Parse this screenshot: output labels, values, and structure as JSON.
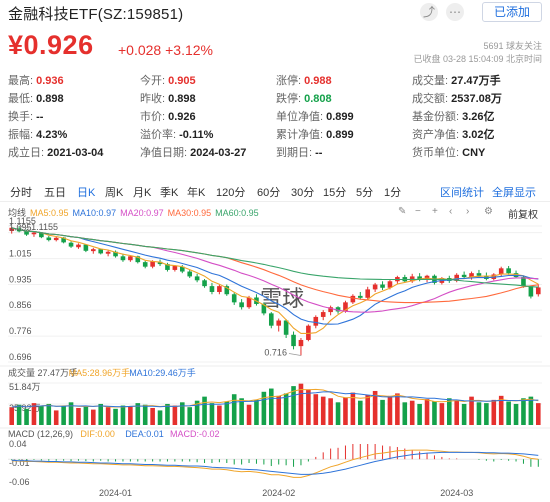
{
  "header": {
    "title": "金融科技ETF(SZ:159851)",
    "follow_label": "已添加",
    "price": "¥0.926",
    "change": "+0.028",
    "change_pct": "+3.12%",
    "followers": "5691  球友关注",
    "status": "已收盘  03-28  15:04:09  北京时间"
  },
  "stats": [
    {
      "label": "最高:",
      "value": "0.936",
      "tone": "red"
    },
    {
      "label": "今开:",
      "value": "0.905",
      "tone": "red"
    },
    {
      "label": "涨停:",
      "value": "0.988",
      "tone": "red"
    },
    {
      "label": "成交量:",
      "value": "27.47万手",
      "tone": ""
    },
    {
      "label": "最低:",
      "value": "0.898",
      "tone": ""
    },
    {
      "label": "昨收:",
      "value": "0.898",
      "tone": ""
    },
    {
      "label": "跌停:",
      "value": "0.808",
      "tone": "green"
    },
    {
      "label": "成交额:",
      "value": "2537.08万",
      "tone": ""
    },
    {
      "label": "换手:",
      "value": "--",
      "tone": ""
    },
    {
      "label": "市价:",
      "value": "0.926",
      "tone": ""
    },
    {
      "label": "单位净值:",
      "value": "0.899",
      "tone": ""
    },
    {
      "label": "基金份额:",
      "value": "3.26亿",
      "tone": ""
    },
    {
      "label": "振幅:",
      "value": "4.23%",
      "tone": ""
    },
    {
      "label": "溢价率:",
      "value": "-0.11%",
      "tone": ""
    },
    {
      "label": "累计净值:",
      "value": "0.899",
      "tone": ""
    },
    {
      "label": "资产净值:",
      "value": "3.02亿",
      "tone": ""
    },
    {
      "label": "成立日:",
      "value": "2021-03-04",
      "tone": ""
    },
    {
      "label": "净值日期:",
      "value": "2024-03-27",
      "tone": ""
    },
    {
      "label": "到期日:",
      "value": "--",
      "tone": ""
    },
    {
      "label": "货币单位:",
      "value": "CNY",
      "tone": ""
    }
  ],
  "tabs": [
    "分时",
    "五日",
    "日K",
    "周K",
    "月K",
    "季K",
    "年K",
    "120分",
    "60分",
    "30分",
    "15分",
    "5分",
    "1分"
  ],
  "active_tab": 2,
  "tab_right": [
    "区间统计",
    "全屏显示"
  ],
  "ma_legend": [
    {
      "text": "均线",
      "color": "#555555"
    },
    {
      "text": "MA5:0.95",
      "color": "#f0a52a"
    },
    {
      "text": "MA10:0.97",
      "color": "#2f74d9"
    },
    {
      "text": "MA20:0.97",
      "color": "#d44fc6"
    },
    {
      "text": "MA30:0.95",
      "color": "#ff6a3d"
    },
    {
      "text": "MA60:0.95",
      "color": "#3aa56b"
    }
  ],
  "fuquan": "前复权",
  "volume_legend": [
    {
      "text": "成交量 27.47万手",
      "color": "#555555"
    },
    {
      "text": "MA5:28.96万手",
      "color": "#f0a52a"
    },
    {
      "text": "MA10:29.46万手",
      "color": "#2f74d9"
    }
  ],
  "macd_legend": [
    {
      "text": "MACD (12,26,9)",
      "color": "#555555"
    },
    {
      "text": "DIF:0.00",
      "color": "#f0a52a"
    },
    {
      "text": "DEA:0.01",
      "color": "#2f74d9"
    },
    {
      "text": "MACD:-0.02",
      "color": "#d44fc6"
    }
  ],
  "watermark": "雪球",
  "colors": {
    "up": "#e5302d",
    "down": "#14a14a",
    "accent": "#1f6fde"
  },
  "chart_data": {
    "type": "candlestick",
    "title": "金融科技ETF(SZ:159851) 日K",
    "xlabel": "",
    "ylabel": "",
    "ylim": [
      0.696,
      1.1155
    ],
    "y_ticks": [
      "1.1155",
      "1.095",
      "1.015",
      "0.935",
      "0.856",
      "0.776",
      "0.696"
    ],
    "x_ticks": [
      "2024-01",
      "2024-02",
      "2024-03"
    ],
    "annotations": {
      "high": "1.1155",
      "low": "0.716"
    },
    "candles": [
      [
        1.1,
        1.112,
        1.092,
        1.11
      ],
      [
        1.108,
        1.115,
        1.096,
        1.099
      ],
      [
        1.099,
        1.104,
        1.085,
        1.089
      ],
      [
        1.09,
        1.099,
        1.082,
        1.095
      ],
      [
        1.094,
        1.097,
        1.078,
        1.081
      ],
      [
        1.08,
        1.085,
        1.068,
        1.072
      ],
      [
        1.072,
        1.082,
        1.068,
        1.079
      ],
      [
        1.08,
        1.082,
        1.062,
        1.065
      ],
      [
        1.064,
        1.068,
        1.048,
        1.052
      ],
      [
        1.05,
        1.062,
        1.045,
        1.058
      ],
      [
        1.058,
        1.06,
        1.035,
        1.039
      ],
      [
        1.038,
        1.048,
        1.03,
        1.044
      ],
      [
        1.044,
        1.046,
        1.028,
        1.031
      ],
      [
        1.03,
        1.04,
        1.022,
        1.036
      ],
      [
        1.036,
        1.04,
        1.018,
        1.022
      ],
      [
        1.022,
        1.03,
        1.005,
        1.01
      ],
      [
        1.01,
        1.025,
        1.005,
        1.022
      ],
      [
        1.022,
        1.024,
        1.0,
        1.004
      ],
      [
        1.004,
        1.008,
        0.985,
        0.99
      ],
      [
        0.99,
        1.01,
        0.985,
        1.006
      ],
      [
        1.005,
        1.012,
        0.992,
        0.998
      ],
      [
        0.998,
        1.002,
        0.975,
        0.98
      ],
      [
        0.98,
        0.995,
        0.975,
        0.992
      ],
      [
        0.99,
        0.995,
        0.97,
        0.975
      ],
      [
        0.975,
        0.98,
        0.955,
        0.96
      ],
      [
        0.96,
        0.968,
        0.942,
        0.948
      ],
      [
        0.948,
        0.952,
        0.925,
        0.93
      ],
      [
        0.93,
        0.94,
        0.905,
        0.912
      ],
      [
        0.912,
        0.935,
        0.905,
        0.93
      ],
      [
        0.93,
        0.935,
        0.9,
        0.905
      ],
      [
        0.905,
        0.91,
        0.872,
        0.88
      ],
      [
        0.88,
        0.89,
        0.858,
        0.865
      ],
      [
        0.865,
        0.9,
        0.86,
        0.895
      ],
      [
        0.895,
        0.905,
        0.87,
        0.875
      ],
      [
        0.875,
        0.88,
        0.84,
        0.846
      ],
      [
        0.846,
        0.85,
        0.8,
        0.808
      ],
      [
        0.808,
        0.83,
        0.79,
        0.824
      ],
      [
        0.824,
        0.828,
        0.77,
        0.78
      ],
      [
        0.78,
        0.79,
        0.735,
        0.745
      ],
      [
        0.745,
        0.77,
        0.716,
        0.764
      ],
      [
        0.764,
        0.812,
        0.76,
        0.808
      ],
      [
        0.808,
        0.84,
        0.8,
        0.835
      ],
      [
        0.835,
        0.856,
        0.825,
        0.85
      ],
      [
        0.85,
        0.87,
        0.84,
        0.865
      ],
      [
        0.865,
        0.868,
        0.845,
        0.852
      ],
      [
        0.852,
        0.885,
        0.848,
        0.88
      ],
      [
        0.88,
        0.905,
        0.875,
        0.9
      ],
      [
        0.9,
        0.912,
        0.888,
        0.894
      ],
      [
        0.894,
        0.928,
        0.89,
        0.92
      ],
      [
        0.92,
        0.94,
        0.912,
        0.935
      ],
      [
        0.935,
        0.945,
        0.918,
        0.925
      ],
      [
        0.925,
        0.95,
        0.92,
        0.945
      ],
      [
        0.945,
        0.962,
        0.938,
        0.958
      ],
      [
        0.958,
        0.965,
        0.94,
        0.945
      ],
      [
        0.945,
        0.968,
        0.94,
        0.96
      ],
      [
        0.96,
        0.97,
        0.945,
        0.95
      ],
      [
        0.95,
        0.965,
        0.942,
        0.962
      ],
      [
        0.962,
        0.966,
        0.935,
        0.94
      ],
      [
        0.94,
        0.958,
        0.935,
        0.955
      ],
      [
        0.955,
        0.962,
        0.94,
        0.946
      ],
      [
        0.946,
        0.97,
        0.942,
        0.965
      ],
      [
        0.965,
        0.975,
        0.952,
        0.958
      ],
      [
        0.958,
        0.975,
        0.95,
        0.97
      ],
      [
        0.97,
        0.98,
        0.958,
        0.962
      ],
      [
        0.962,
        0.972,
        0.948,
        0.952
      ],
      [
        0.952,
        0.97,
        0.948,
        0.966
      ],
      [
        0.966,
        0.99,
        0.96,
        0.985
      ],
      [
        0.985,
        0.992,
        0.965,
        0.97
      ],
      [
        0.97,
        0.978,
        0.955,
        0.958
      ],
      [
        0.958,
        0.962,
        0.925,
        0.93
      ],
      [
        0.93,
        0.932,
        0.892,
        0.898
      ],
      [
        0.905,
        0.936,
        0.898,
        0.926
      ]
    ],
    "volume": {
      "ylim": [
        0,
        51.84
      ],
      "y_ticks": [
        "51.84万",
        "25.92万"
      ],
      "values": [
        22,
        25,
        20,
        27,
        24,
        26,
        18,
        23,
        28,
        21,
        24,
        19,
        26,
        22,
        20,
        24,
        23,
        27,
        25,
        21,
        18,
        26,
        24,
        28,
        22,
        30,
        35,
        27,
        24,
        29,
        38,
        33,
        25,
        31,
        41,
        45,
        36,
        39,
        48,
        51,
        44,
        38,
        35,
        33,
        28,
        34,
        40,
        30,
        37,
        42,
        31,
        36,
        39,
        28,
        30,
        26,
        32,
        29,
        27,
        33,
        30,
        26,
        35,
        28,
        27,
        31,
        36,
        29,
        26,
        33,
        35,
        27
      ]
    },
    "macd": {
      "ylim": [
        -0.06,
        0.04
      ],
      "y_ticks": [
        "0.04",
        "-0.01",
        "-0.06"
      ],
      "dif": [
        -0.004,
        -0.005,
        -0.006,
        -0.006,
        -0.007,
        -0.008,
        -0.008,
        -0.009,
        -0.01,
        -0.01,
        -0.011,
        -0.012,
        -0.012,
        -0.013,
        -0.014,
        -0.015,
        -0.015,
        -0.016,
        -0.017,
        -0.017,
        -0.018,
        -0.019,
        -0.019,
        -0.02,
        -0.021,
        -0.022,
        -0.024,
        -0.026,
        -0.026,
        -0.028,
        -0.031,
        -0.033,
        -0.032,
        -0.034,
        -0.037,
        -0.041,
        -0.041,
        -0.044,
        -0.048,
        -0.048,
        -0.043,
        -0.036,
        -0.028,
        -0.02,
        -0.015,
        -0.008,
        -0.001,
        0.004,
        0.009,
        0.014,
        0.016,
        0.019,
        0.022,
        0.023,
        0.024,
        0.024,
        0.024,
        0.022,
        0.021,
        0.019,
        0.019,
        0.018,
        0.018,
        0.017,
        0.015,
        0.014,
        0.015,
        0.014,
        0.012,
        0.008,
        0.002,
        0.0
      ],
      "dea": [
        -0.003,
        -0.004,
        -0.004,
        -0.005,
        -0.005,
        -0.006,
        -0.006,
        -0.007,
        -0.007,
        -0.008,
        -0.008,
        -0.009,
        -0.01,
        -0.01,
        -0.011,
        -0.012,
        -0.012,
        -0.013,
        -0.014,
        -0.014,
        -0.015,
        -0.016,
        -0.016,
        -0.017,
        -0.018,
        -0.018,
        -0.019,
        -0.021,
        -0.022,
        -0.023,
        -0.024,
        -0.026,
        -0.027,
        -0.028,
        -0.03,
        -0.032,
        -0.034,
        -0.036,
        -0.038,
        -0.04,
        -0.04,
        -0.039,
        -0.037,
        -0.034,
        -0.03,
        -0.026,
        -0.021,
        -0.016,
        -0.011,
        -0.006,
        -0.002,
        0.002,
        0.006,
        0.009,
        0.012,
        0.014,
        0.016,
        0.017,
        0.018,
        0.018,
        0.018,
        0.018,
        0.018,
        0.018,
        0.017,
        0.017,
        0.016,
        0.016,
        0.015,
        0.014,
        0.012,
        0.01
      ],
      "hist": [
        -0.002,
        -0.002,
        -0.003,
        -0.002,
        -0.003,
        -0.004,
        -0.004,
        -0.004,
        -0.005,
        -0.004,
        -0.005,
        -0.006,
        -0.004,
        -0.006,
        -0.006,
        -0.006,
        -0.006,
        -0.006,
        -0.006,
        -0.006,
        -0.006,
        -0.006,
        -0.006,
        -0.006,
        -0.006,
        -0.008,
        -0.01,
        -0.01,
        -0.008,
        -0.01,
        -0.014,
        -0.014,
        -0.01,
        -0.012,
        -0.014,
        -0.018,
        -0.014,
        -0.016,
        -0.02,
        -0.016,
        -0.006,
        0.006,
        0.018,
        0.028,
        0.03,
        0.036,
        0.04,
        0.04,
        0.04,
        0.04,
        0.036,
        0.034,
        0.032,
        0.028,
        0.024,
        0.02,
        0.016,
        0.01,
        0.006,
        0.002,
        0.002,
        0.0,
        0.0,
        -0.002,
        -0.004,
        -0.006,
        -0.002,
        -0.004,
        -0.006,
        -0.012,
        -0.02,
        -0.02
      ]
    }
  }
}
